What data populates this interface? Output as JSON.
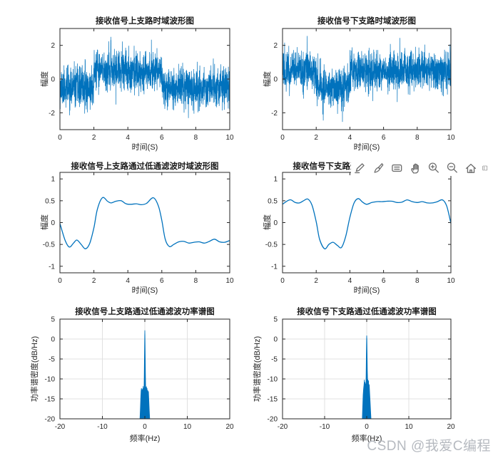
{
  "figure": {
    "background": "#ffffff",
    "watermark_text": "CSDN @我爱C编程"
  },
  "colors": {
    "line": "#0072BD",
    "axis": "#262626",
    "tick_label": "#262626",
    "title": "#1a1a1a",
    "grid": "#e0e0e0",
    "toolbar_icon": "#6e6e6e",
    "watermark": "#b6bac0"
  },
  "toolbar": {
    "icons": [
      {
        "name": "export"
      },
      {
        "name": "brush"
      },
      {
        "name": "data-tips"
      },
      {
        "name": "pan"
      },
      {
        "name": "zoom-in"
      },
      {
        "name": "zoom-out"
      },
      {
        "name": "restore-view"
      },
      {
        "name": "partial"
      }
    ]
  },
  "chart_data": [
    {
      "id": "upper-time",
      "type": "line",
      "title": "接收信号上支路时域波形图",
      "xlabel": "时间(S)",
      "ylabel": "幅度",
      "xlim": [
        0,
        10
      ],
      "ylim": [
        -3,
        3
      ],
      "xticks": [
        0,
        2,
        4,
        6,
        8,
        10
      ],
      "yticks": [
        -2,
        0,
        2
      ],
      "grid": false,
      "series": {
        "kind": "noisy_segments",
        "noise_std": 0.58,
        "seed": 11,
        "n": 1800,
        "segments": [
          {
            "t": [
              0,
              2
            ],
            "level": -0.5
          },
          {
            "t": [
              2,
              6
            ],
            "level": 0.5
          },
          {
            "t": [
              6,
              10
            ],
            "level": -0.5
          }
        ]
      }
    },
    {
      "id": "lower-time",
      "type": "line",
      "title": "接收信号下支路时域波形图",
      "xlabel": "时间(S)",
      "ylabel": "幅度",
      "xlim": [
        0,
        10
      ],
      "ylim": [
        -3,
        3
      ],
      "xticks": [
        0,
        2,
        4,
        6,
        8,
        10
      ],
      "yticks": [
        -2,
        0,
        2
      ],
      "grid": false,
      "series": {
        "kind": "noisy_segments",
        "noise_std": 0.58,
        "seed": 77,
        "n": 1800,
        "segments": [
          {
            "t": [
              0,
              2
            ],
            "level": 0.5
          },
          {
            "t": [
              2,
              4
            ],
            "level": -0.5
          },
          {
            "t": [
              4,
              10
            ],
            "level": 0.5
          }
        ]
      }
    },
    {
      "id": "upper-filtered",
      "type": "line",
      "title": "接收信号上支路通过低通滤波时域波形图",
      "xlabel": "时间(S)",
      "ylabel": "幅度",
      "xlim": [
        0,
        10
      ],
      "ylim": [
        -1.15,
        1.15
      ],
      "xticks": [
        0,
        2,
        4,
        6,
        8,
        10
      ],
      "yticks": [
        -1,
        -0.5,
        0,
        0.5,
        1
      ],
      "grid": false,
      "series": {
        "kind": "smooth_line",
        "points": [
          [
            0,
            -0.02
          ],
          [
            0.3,
            -0.4
          ],
          [
            0.55,
            -0.56
          ],
          [
            0.8,
            -0.47
          ],
          [
            1,
            -0.4
          ],
          [
            1.25,
            -0.5
          ],
          [
            1.5,
            -0.6
          ],
          [
            1.75,
            -0.48
          ],
          [
            2,
            -0.12
          ],
          [
            2.2,
            0.3
          ],
          [
            2.5,
            0.57
          ],
          [
            2.8,
            0.49
          ],
          [
            3,
            0.45
          ],
          [
            3.3,
            0.49
          ],
          [
            3.6,
            0.5
          ],
          [
            3.9,
            0.43
          ],
          [
            4.2,
            0.42
          ],
          [
            4.5,
            0.43
          ],
          [
            4.8,
            0.41
          ],
          [
            5.1,
            0.44
          ],
          [
            5.5,
            0.57
          ],
          [
            5.8,
            0.38
          ],
          [
            6,
            0.05
          ],
          [
            6.2,
            -0.38
          ],
          [
            6.45,
            -0.55
          ],
          [
            6.7,
            -0.5
          ],
          [
            7,
            -0.44
          ],
          [
            7.3,
            -0.43
          ],
          [
            7.6,
            -0.47
          ],
          [
            7.9,
            -0.45
          ],
          [
            8.2,
            -0.44
          ],
          [
            8.5,
            -0.47
          ],
          [
            8.8,
            -0.43
          ],
          [
            9.1,
            -0.38
          ],
          [
            9.4,
            -0.44
          ],
          [
            9.7,
            -0.45
          ],
          [
            10,
            -0.41
          ]
        ]
      }
    },
    {
      "id": "lower-filtered",
      "type": "line",
      "title": "接收信号下支路通过低通滤波时域波形图",
      "xlabel": "时间(S)",
      "ylabel": "幅度",
      "xlim": [
        0,
        10
      ],
      "ylim": [
        -1.15,
        1.15
      ],
      "xticks": [
        0,
        2,
        4,
        6,
        8,
        10
      ],
      "yticks": [
        -1,
        -0.5,
        0,
        0.5,
        1
      ],
      "grid": false,
      "series": {
        "kind": "smooth_line",
        "points": [
          [
            0,
            0.42
          ],
          [
            0.3,
            0.5
          ],
          [
            0.5,
            0.52
          ],
          [
            0.75,
            0.46
          ],
          [
            1,
            0.45
          ],
          [
            1.25,
            0.5
          ],
          [
            1.5,
            0.54
          ],
          [
            1.75,
            0.4
          ],
          [
            2,
            0.02
          ],
          [
            2.2,
            -0.38
          ],
          [
            2.5,
            -0.6
          ],
          [
            2.75,
            -0.5
          ],
          [
            3,
            -0.45
          ],
          [
            3.25,
            -0.52
          ],
          [
            3.5,
            -0.57
          ],
          [
            3.75,
            -0.32
          ],
          [
            4,
            0.12
          ],
          [
            4.25,
            0.45
          ],
          [
            4.5,
            0.55
          ],
          [
            4.75,
            0.47
          ],
          [
            5,
            0.42
          ],
          [
            5.3,
            0.46
          ],
          [
            5.6,
            0.48
          ],
          [
            5.9,
            0.48
          ],
          [
            6.2,
            0.49
          ],
          [
            6.5,
            0.49
          ],
          [
            6.8,
            0.46
          ],
          [
            7.1,
            0.47
          ],
          [
            7.4,
            0.52
          ],
          [
            7.7,
            0.48
          ],
          [
            8,
            0.46
          ],
          [
            8.3,
            0.48
          ],
          [
            8.6,
            0.45
          ],
          [
            8.9,
            0.45
          ],
          [
            9.2,
            0.48
          ],
          [
            9.5,
            0.52
          ],
          [
            9.75,
            0.38
          ],
          [
            10,
            -0.02
          ]
        ]
      }
    },
    {
      "id": "upper-psd",
      "type": "area",
      "title": "接收信号上支路通过低通滤波功率谱图",
      "xlabel": "频率(Hz)",
      "ylabel": "功率谱密度(dB/Hz)",
      "xlim": [
        -20,
        20
      ],
      "ylim": [
        -20,
        5
      ],
      "xticks": [
        -20,
        -10,
        0,
        10,
        20
      ],
      "yticks": [
        -20,
        -15,
        -10,
        -5,
        0,
        5
      ],
      "grid": true,
      "series": {
        "kind": "filled_spike",
        "baseline": -20,
        "peak": [
          0,
          2.2
        ],
        "points": [
          [
            -1.15,
            -20
          ],
          [
            -1.05,
            -17.5
          ],
          [
            -0.95,
            -14.5
          ],
          [
            -0.88,
            -13
          ],
          [
            -0.8,
            -12.3
          ],
          [
            -0.72,
            -14
          ],
          [
            -0.65,
            -12.6
          ],
          [
            -0.58,
            -15
          ],
          [
            -0.5,
            -12.4
          ],
          [
            -0.44,
            -13.8
          ],
          [
            -0.38,
            -11.8
          ],
          [
            -0.32,
            -13
          ],
          [
            -0.26,
            -12.2
          ],
          [
            -0.2,
            -13.6
          ],
          [
            -0.14,
            -9
          ],
          [
            -0.08,
            -3.5
          ],
          [
            -0.03,
            1
          ],
          [
            0,
            2.2
          ],
          [
            0.03,
            1
          ],
          [
            0.08,
            -3
          ],
          [
            0.14,
            -8.5
          ],
          [
            0.2,
            -12.8
          ],
          [
            0.26,
            -12
          ],
          [
            0.32,
            -13.4
          ],
          [
            0.38,
            -11.9
          ],
          [
            0.45,
            -13.6
          ],
          [
            0.52,
            -12.3
          ],
          [
            0.6,
            -14.6
          ],
          [
            0.68,
            -12.8
          ],
          [
            0.76,
            -13.9
          ],
          [
            0.85,
            -13.1
          ],
          [
            0.95,
            -15.5
          ],
          [
            1.05,
            -18
          ],
          [
            1.15,
            -20
          ]
        ]
      }
    },
    {
      "id": "lower-psd",
      "type": "area",
      "title": "接收信号下支路通过低通滤波功率谱图",
      "xlabel": "频率(Hz)",
      "ylabel": "功率谱密度(dB/Hz)",
      "xlim": [
        -20,
        20
      ],
      "ylim": [
        -20,
        5
      ],
      "xticks": [
        -20,
        -10,
        0,
        10,
        20
      ],
      "yticks": [
        -20,
        -15,
        -10,
        -5,
        0,
        5
      ],
      "grid": true,
      "series": {
        "kind": "filled_spike",
        "baseline": -20,
        "peak": [
          0,
          0.9
        ],
        "points": [
          [
            -1.05,
            -20
          ],
          [
            -0.95,
            -17
          ],
          [
            -0.85,
            -14
          ],
          [
            -0.75,
            -12.5
          ],
          [
            -0.65,
            -11.5
          ],
          [
            -0.55,
            -10.2
          ],
          [
            -0.48,
            -12
          ],
          [
            -0.4,
            -10.8
          ],
          [
            -0.33,
            -12.5
          ],
          [
            -0.26,
            -11.2
          ],
          [
            -0.2,
            -12.8
          ],
          [
            -0.14,
            -8.5
          ],
          [
            -0.08,
            -3
          ],
          [
            -0.03,
            0.2
          ],
          [
            0,
            0.9
          ],
          [
            0.04,
            0
          ],
          [
            0.09,
            -3.5
          ],
          [
            0.15,
            -8
          ],
          [
            0.21,
            -10.5
          ],
          [
            0.27,
            -10.1
          ],
          [
            0.34,
            -12
          ],
          [
            0.42,
            -10.4
          ],
          [
            0.5,
            -12.3
          ],
          [
            0.6,
            -11.4
          ],
          [
            0.7,
            -13.5
          ],
          [
            0.8,
            -15.5
          ],
          [
            0.92,
            -18
          ],
          [
            1.02,
            -20
          ]
        ]
      }
    }
  ]
}
